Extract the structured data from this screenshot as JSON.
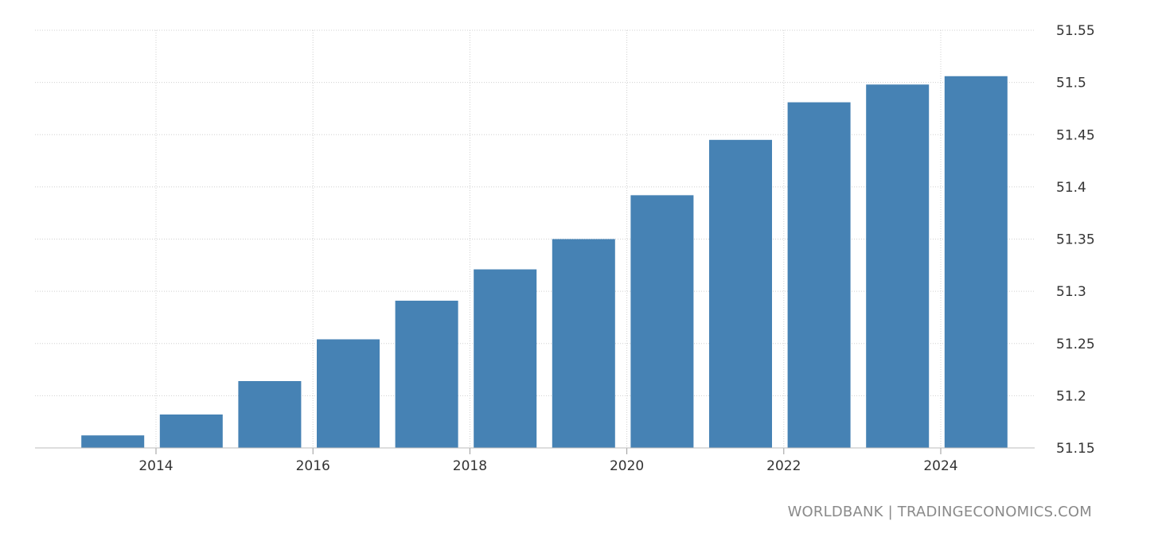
{
  "chart_data": {
    "type": "bar",
    "categories": [
      "2013",
      "2014",
      "2015",
      "2016",
      "2017",
      "2018",
      "2019",
      "2020",
      "2021",
      "2022",
      "2023",
      "2024"
    ],
    "values": [
      51.162,
      51.182,
      51.214,
      51.254,
      51.291,
      51.321,
      51.35,
      51.392,
      51.445,
      51.481,
      51.498,
      51.506
    ],
    "title": "",
    "xlabel": "",
    "ylabel": "",
    "ylim": [
      51.15,
      51.55
    ],
    "yticks": [
      "51.15",
      "51.2",
      "51.25",
      "51.3",
      "51.35",
      "51.4",
      "51.45",
      "51.5",
      "51.55"
    ],
    "xticks": [
      "2014",
      "2016",
      "2018",
      "2020",
      "2022",
      "2024"
    ],
    "grid": true,
    "y_axis_position": "right",
    "bar_color": "#4682b4"
  },
  "source": "WORLDBANK | TRADINGECONOMICS.COM"
}
